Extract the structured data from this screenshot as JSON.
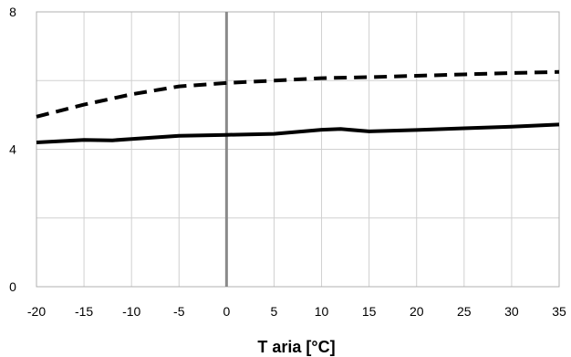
{
  "chart_data": {
    "type": "line",
    "title": "",
    "xlabel": "T aria [°C]",
    "ylabel": "",
    "xlim": [
      -20,
      35
    ],
    "ylim": [
      0,
      8
    ],
    "x_ticks": [
      -20,
      -15,
      -10,
      -5,
      0,
      5,
      10,
      15,
      20,
      25,
      30,
      35
    ],
    "y_ticks": [
      0,
      4,
      8
    ],
    "grid": true,
    "legend": "none",
    "series": [
      {
        "style": "dashed",
        "color": "#000000",
        "x": [
          -20,
          -15,
          -10,
          -5,
          0,
          5,
          10,
          15,
          20,
          25,
          30,
          35
        ],
        "y": [
          4.95,
          5.3,
          5.6,
          5.83,
          5.93,
          6.0,
          6.07,
          6.1,
          6.14,
          6.18,
          6.22,
          6.25
        ]
      },
      {
        "style": "solid",
        "color": "#000000",
        "x": [
          -20,
          -15,
          -12,
          -10,
          -5,
          0,
          5,
          10,
          12,
          15,
          20,
          25,
          30,
          35
        ],
        "y": [
          4.2,
          4.27,
          4.26,
          4.3,
          4.39,
          4.42,
          4.45,
          4.57,
          4.59,
          4.52,
          4.56,
          4.61,
          4.66,
          4.72
        ]
      }
    ]
  }
}
